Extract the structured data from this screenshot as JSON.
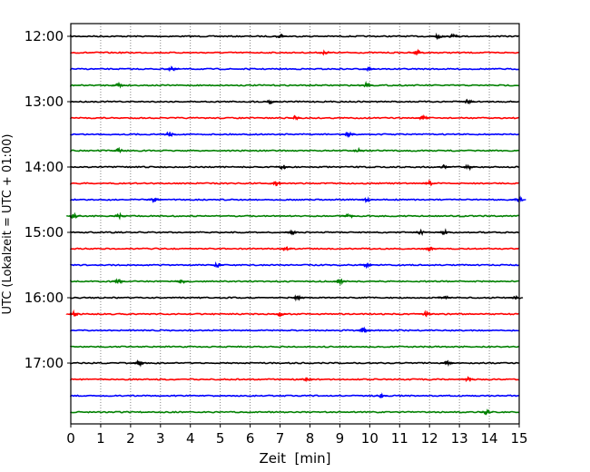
{
  "chart_data": {
    "type": "line",
    "title": "",
    "xlabel": "Zeit  [min]",
    "ylabel": "UTC (Lokalzeit = UTC + 01:00)",
    "xlim": [
      0,
      15
    ],
    "x_ticks": [
      "0",
      "1",
      "2",
      "3",
      "4",
      "5",
      "6",
      "7",
      "8",
      "9",
      "10",
      "11",
      "12",
      "13",
      "14",
      "15"
    ],
    "y_ticks": [
      "12:00",
      "13:00",
      "14:00",
      "15:00",
      "16:00",
      "17:00"
    ],
    "grid": "vertical dotted",
    "trace_colors": [
      "#000000",
      "#ff0000",
      "#0000ff",
      "#008000"
    ],
    "rows_per_hour": 4,
    "traces": [
      {
        "start": "12:00",
        "events_min": [
          7.0,
          12.3,
          12.8
        ]
      },
      {
        "start": "12:15",
        "events_min": [
          8.5,
          11.6
        ]
      },
      {
        "start": "12:30",
        "events_min": [
          3.4,
          10.0
        ]
      },
      {
        "start": "12:45",
        "events_min": [
          1.6,
          9.9
        ]
      },
      {
        "start": "13:00",
        "events_min": [
          6.7,
          13.3
        ]
      },
      {
        "start": "13:15",
        "events_min": [
          7.5,
          11.8
        ]
      },
      {
        "start": "13:30",
        "events_min": [
          3.3,
          9.3
        ]
      },
      {
        "start": "13:45",
        "events_min": [
          1.6,
          9.6
        ]
      },
      {
        "start": "14:00",
        "events_min": [
          7.1,
          12.5,
          13.3
        ]
      },
      {
        "start": "14:15",
        "events_min": [
          6.9,
          12.0
        ]
      },
      {
        "start": "14:30",
        "events_min": [
          2.8,
          9.9,
          15.0
        ]
      },
      {
        "start": "14:45",
        "events_min": [
          0.1,
          1.6,
          9.3
        ]
      },
      {
        "start": "15:00",
        "events_min": [
          7.4,
          11.7,
          12.5
        ]
      },
      {
        "start": "15:15",
        "events_min": [
          7.2,
          12.0
        ]
      },
      {
        "start": "15:30",
        "events_min": [
          4.9,
          9.9
        ]
      },
      {
        "start": "15:45",
        "events_min": [
          1.6,
          3.7,
          9.0
        ]
      },
      {
        "start": "16:00",
        "events_min": [
          7.6,
          12.5,
          14.9
        ]
      },
      {
        "start": "16:15",
        "events_min": [
          0.1,
          7.0,
          11.9
        ]
      },
      {
        "start": "16:30",
        "events_min": [
          9.8
        ]
      },
      {
        "start": "16:45",
        "events_min": []
      },
      {
        "start": "17:00",
        "events_min": [
          2.3,
          12.6
        ]
      },
      {
        "start": "17:15",
        "events_min": [
          7.9,
          13.3
        ]
      },
      {
        "start": "17:30",
        "events_min": [
          10.4
        ]
      },
      {
        "start": "17:45",
        "events_min": [
          13.9
        ]
      }
    ]
  }
}
